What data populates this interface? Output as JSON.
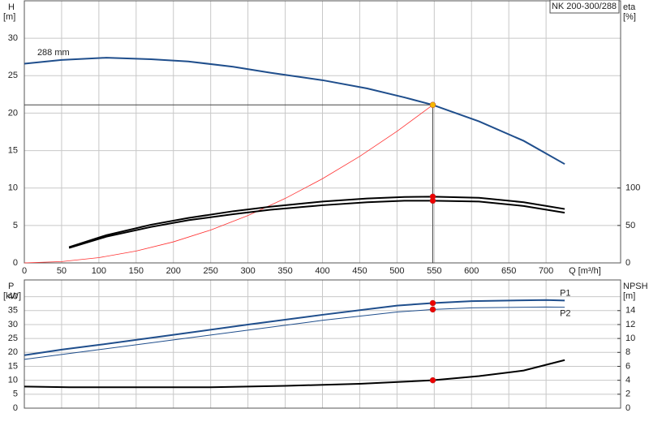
{
  "chart_data": [
    {
      "type": "line",
      "id_label": "NK 200-300/288",
      "ylabel": "H",
      "yunit": "[m]",
      "y2label": "eta",
      "y2unit": "[%]",
      "xlabel": "Q [m³/h]",
      "xlim": [
        0,
        800
      ],
      "xticks": [
        0,
        50,
        100,
        150,
        200,
        250,
        300,
        350,
        400,
        450,
        500,
        550,
        600,
        650,
        700
      ],
      "ylim": [
        0,
        35
      ],
      "yticks": [
        0,
        5,
        10,
        15,
        20,
        25,
        30
      ],
      "y2lim": [
        0,
        350
      ],
      "y2ticks": [
        0,
        50,
        100
      ],
      "grid": true,
      "series": [
        {
          "name": "288 mm",
          "color": "#1f4e8c",
          "width": 2,
          "x": [
            0,
            50,
            110,
            170,
            220,
            280,
            330,
            400,
            460,
            510,
            548,
            610,
            670,
            725
          ],
          "values": [
            26.6,
            27.1,
            27.4,
            27.2,
            26.9,
            26.2,
            25.4,
            24.4,
            23.3,
            22.1,
            21.1,
            18.9,
            16.3,
            13.2
          ]
        },
        {
          "color": "#ff3030",
          "width": 0.8,
          "x": [
            0,
            50,
            100,
            150,
            200,
            250,
            300,
            350,
            400,
            450,
            500,
            548
          ],
          "values": [
            0,
            0.18,
            0.7,
            1.58,
            2.81,
            4.39,
            6.32,
            8.61,
            11.24,
            14.23,
            17.57,
            21.1
          ]
        },
        {
          "color": "#000000",
          "width": 2,
          "axis": "y2",
          "x": [
            60,
            110,
            170,
            220,
            280,
            330,
            400,
            460,
            510,
            548,
            610,
            670,
            725
          ],
          "values": [
            21,
            37,
            51,
            60,
            69,
            75,
            82,
            86,
            88,
            88.5,
            87,
            81,
            72
          ]
        },
        {
          "color": "#000000",
          "width": 2,
          "axis": "y2",
          "x": [
            60,
            110,
            170,
            220,
            280,
            330,
            400,
            460,
            510,
            548,
            610,
            670,
            725
          ],
          "values": [
            20,
            35,
            48,
            57,
            65,
            71,
            77,
            81,
            83,
            83,
            82,
            76,
            67
          ]
        }
      ],
      "points": [
        {
          "x": 548,
          "y": 21.1,
          "color": "#f5b800",
          "crosshair": true
        },
        {
          "x": 548,
          "y": 88.5,
          "color": "#ee0000",
          "axis": "y2"
        },
        {
          "x": 548,
          "y": 83,
          "color": "#ee0000",
          "axis": "y2"
        }
      ]
    },
    {
      "type": "line",
      "ylabel": "P",
      "yunit": "[kW]",
      "y2label": "NPSH",
      "y2unit": "[m]",
      "xlim": [
        0,
        800
      ],
      "ylim": [
        0,
        46
      ],
      "yticks": [
        0,
        5,
        10,
        15,
        20,
        25,
        30,
        35,
        40
      ],
      "y2lim": [
        0,
        18.4
      ],
      "y2ticks": [
        0,
        2,
        4,
        6,
        8,
        10,
        12,
        14
      ],
      "grid": true,
      "series": [
        {
          "name": "P1",
          "color": "#1f4e8c",
          "width": 2,
          "x": [
            0,
            50,
            100,
            200,
            300,
            400,
            500,
            548,
            600,
            700,
            725
          ],
          "values": [
            19,
            21,
            22.7,
            26.3,
            30,
            33.5,
            36.8,
            37.7,
            38.4,
            38.8,
            38.6
          ]
        },
        {
          "name": "P2",
          "color": "#1f4e8c",
          "width": 1,
          "x": [
            0,
            100,
            200,
            300,
            400,
            500,
            548,
            600,
            700,
            725
          ],
          "values": [
            17.5,
            21,
            24.5,
            28,
            31.5,
            34.5,
            35.4,
            36,
            36.3,
            36.2
          ]
        },
        {
          "color": "#000000",
          "width": 2,
          "axis": "y2",
          "x": [
            0,
            60,
            250,
            350,
            450,
            548,
            610,
            670,
            725
          ],
          "values": [
            3.1,
            3.0,
            3.0,
            3.2,
            3.5,
            4.0,
            4.6,
            5.4,
            6.9
          ]
        }
      ],
      "points": [
        {
          "x": 548,
          "y": 37.7,
          "color": "#ee0000"
        },
        {
          "x": 548,
          "y": 35.4,
          "color": "#ee0000"
        },
        {
          "x": 548,
          "y": 4.0,
          "color": "#ee0000",
          "axis": "y2"
        }
      ]
    }
  ]
}
